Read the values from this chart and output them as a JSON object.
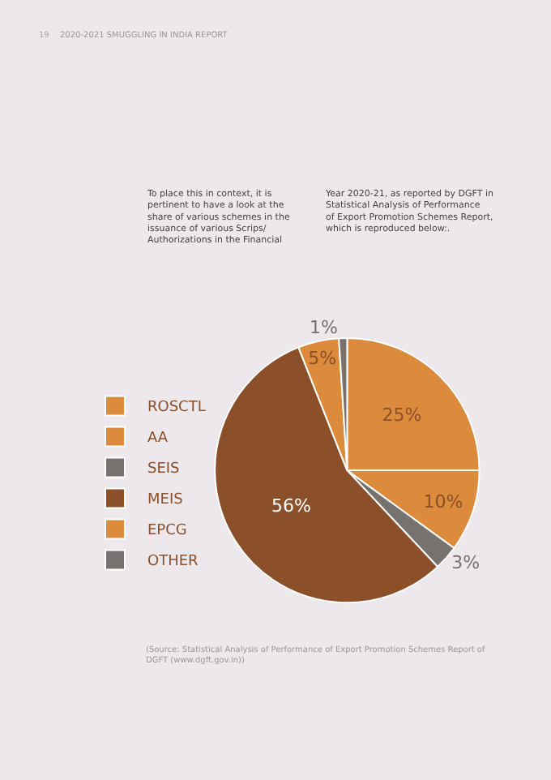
{
  "chart_data": {
    "type": "pie",
    "categories": [
      "ROSCTL",
      "AA",
      "SEIS",
      "MEIS",
      "EPCG",
      "OTHER"
    ],
    "values": [
      25,
      10,
      3,
      56,
      5,
      1
    ],
    "value_labels": [
      "25%",
      "10%",
      "3%",
      "56%",
      "5%",
      "1%"
    ],
    "colors": [
      "#dc8a3c",
      "#dc8a3c",
      "#76726f",
      "#8b5029",
      "#dc8a3c",
      "#76726f"
    ],
    "legend": "left",
    "annotations": [
      "19",
      "2020-2021 SMUGGLING IN INDIA REPORT",
      "To place this in context, it is pertinent to have a look at the share of various schemes in the issuance of various Scrips/ Authorizations in the Financial",
      "Year 2020-21, as reported by DGFT in Statistical Analysis of Performance of Export Promotion Schemes Report, which is reproduced below:.",
      "(Source: Statistical Analysis of Performance of Export Promotion Schemes Report of DGFT (www.dgft.gov.in))"
    ]
  }
}
